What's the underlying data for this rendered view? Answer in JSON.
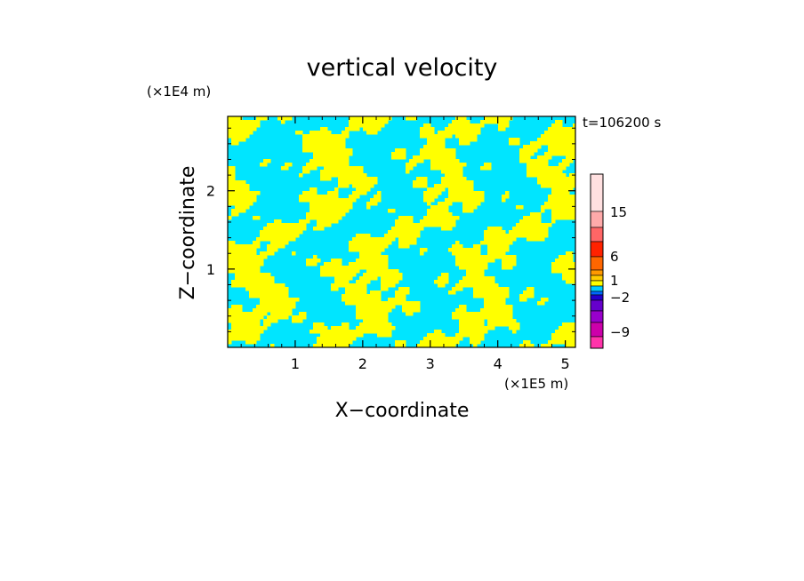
{
  "chart_data": {
    "type": "heatmap",
    "title": "vertical velocity",
    "xlabel": "X−coordinate",
    "ylabel": "Z−coordinate",
    "x_unit": "(×1E5 m)",
    "y_unit": "(×1E4 m)",
    "time_label": "t=106200 s",
    "xlim": [
      0,
      5.15
    ],
    "ylim": [
      0,
      2.95
    ],
    "x_ticks": [
      1,
      2,
      3,
      4,
      5
    ],
    "y_ticks": [
      1,
      2
    ],
    "x_tick_labels": [
      "1",
      "2",
      "3",
      "4",
      "5"
    ],
    "y_tick_labels": [
      "1",
      "2"
    ],
    "field_colors": [
      "#00e5ff",
      "#ffff00"
    ],
    "colorbar": {
      "levels": [
        {
          "color": "#ff33aa"
        },
        {
          "color": "#cc00aa"
        },
        {
          "color": "#9900cc"
        },
        {
          "color": "#6600cc"
        },
        {
          "color": "#2200cc"
        },
        {
          "color": "#0066ff"
        },
        {
          "color": "#00ccff"
        },
        {
          "color": "#ffff00"
        },
        {
          "color": "#ffcc00"
        },
        {
          "color": "#ff9900"
        },
        {
          "color": "#ff6600"
        },
        {
          "color": "#ff2200"
        },
        {
          "color": "#ff6666"
        },
        {
          "color": "#ffaaaa"
        },
        {
          "color": "#ffe0e0"
        }
      ],
      "tick_labels": [
        "15",
        "6",
        "1",
        "−2",
        "−9"
      ]
    }
  }
}
